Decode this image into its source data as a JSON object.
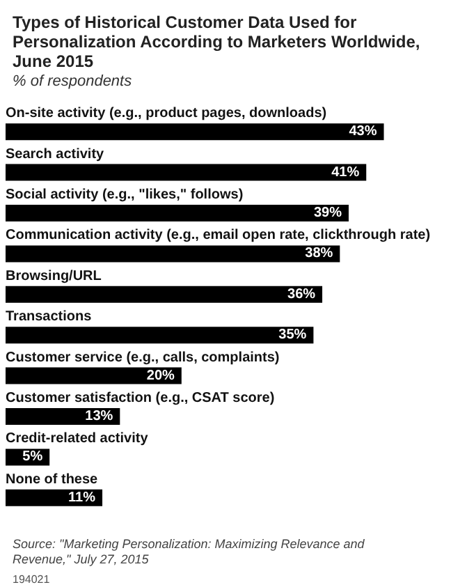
{
  "chart_data": {
    "type": "bar",
    "orientation": "horizontal",
    "title": "Types of Historical Customer Data Used for Personalization According to Marketers Worldwide, June 2015",
    "subtitle": "% of respondents",
    "categories": [
      "On-site activity (e.g., product pages, downloads)",
      "Search activity",
      "Social activity (e.g., \"likes,\" follows)",
      "Communication activity (e.g., email open rate, clickthrough rate)",
      "Browsing/URL",
      "Transactions",
      "Customer service (e.g., calls, complaints)",
      "Customer satisfaction (e.g., CSAT score)",
      "Credit-related activity",
      "None of these"
    ],
    "values": [
      43,
      41,
      39,
      38,
      36,
      35,
      20,
      13,
      5,
      11
    ],
    "value_labels": [
      "43%",
      "41%",
      "39%",
      "38%",
      "36%",
      "35%",
      "20%",
      "13%",
      "5%",
      "11%"
    ],
    "color": "#000000",
    "annotations": [
      "Source: \"Marketing Personalization: Maximizing Relevance and Revenue,\" July 27, 2015",
      "194021"
    ]
  }
}
